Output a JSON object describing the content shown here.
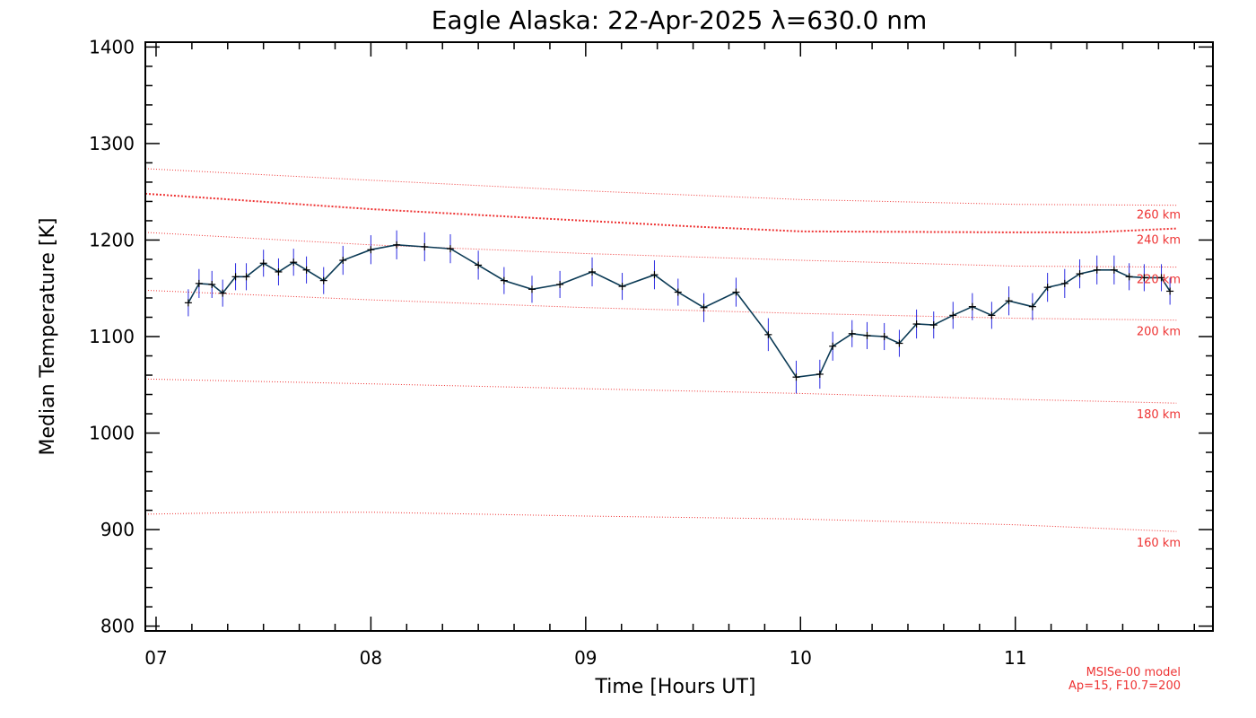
{
  "chart_data": {
    "type": "line",
    "title": "Eagle Alaska: 22-Apr-2025 λ=630.0 nm",
    "xlabel": "Time [Hours UT]",
    "ylabel": "Median Temperature [K]",
    "xlim": [
      6.95,
      11.92
    ],
    "ylim": [
      795,
      1405
    ],
    "x_ticks": [
      7,
      8,
      9,
      10,
      11
    ],
    "x_tick_labels": [
      "07",
      "08",
      "09",
      "10",
      "11"
    ],
    "y_ticks": [
      800,
      900,
      1000,
      1100,
      1200,
      1300,
      1400
    ],
    "y_tick_labels": [
      "800",
      "900",
      "1000",
      "1100",
      "1200",
      "1300",
      "1400"
    ],
    "series": [
      {
        "name": "Median Temperature",
        "color": "#0b3a55",
        "error_color": "#2a2ae0",
        "x": [
          7.15,
          7.2,
          7.26,
          7.31,
          7.37,
          7.42,
          7.5,
          7.57,
          7.64,
          7.7,
          7.78,
          7.87,
          8.0,
          8.12,
          8.25,
          8.37,
          8.5,
          8.62,
          8.75,
          8.88,
          9.03,
          9.17,
          9.32,
          9.43,
          9.55,
          9.7,
          9.85,
          9.98,
          10.09,
          10.15,
          10.24,
          10.31,
          10.39,
          10.46,
          10.54,
          10.62,
          10.71,
          10.8,
          10.89,
          10.97,
          11.08,
          11.15,
          11.23,
          11.3,
          11.38,
          11.46,
          11.53,
          11.6,
          11.68,
          11.72
        ],
        "y": [
          1135,
          1155,
          1154,
          1145,
          1162,
          1162,
          1176,
          1167,
          1177,
          1169,
          1158,
          1179,
          1190,
          1195,
          1193,
          1191,
          1174,
          1158,
          1149,
          1154,
          1167,
          1152,
          1164,
          1146,
          1130,
          1146,
          1102,
          1058,
          1061,
          1090,
          1103,
          1101,
          1100,
          1093,
          1113,
          1112,
          1122,
          1131,
          1122,
          1137,
          1131,
          1151,
          1155,
          1165,
          1169,
          1169,
          1162,
          1161,
          1161,
          1147
        ],
        "err": [
          14,
          15,
          14,
          14,
          14,
          14,
          14,
          14,
          14,
          14,
          14,
          15,
          15,
          15,
          15,
          15,
          15,
          14,
          14,
          14,
          15,
          14,
          15,
          14,
          15,
          15,
          17,
          17,
          15,
          15,
          14,
          14,
          14,
          14,
          15,
          14,
          14,
          14,
          14,
          15,
          14,
          15,
          15,
          15,
          15,
          15,
          14,
          14,
          14,
          14
        ]
      }
    ],
    "model_curves": [
      {
        "label": "260 km",
        "x": [
          6.95,
          8.0,
          9.0,
          10.0,
          11.0,
          11.75
        ],
        "y": [
          1274,
          1262,
          1251,
          1242,
          1237,
          1236
        ]
      },
      {
        "label": "240 km",
        "x": [
          6.95,
          8.0,
          9.0,
          9.5,
          10.0,
          11.0,
          11.35,
          11.75
        ],
        "y": [
          1248,
          1232,
          1220,
          1214,
          1209,
          1208,
          1208,
          1212
        ],
        "bold": true
      },
      {
        "label": "220 km",
        "x": [
          6.95,
          8.0,
          9.0,
          10.0,
          11.0,
          11.75
        ],
        "y": [
          1208,
          1195,
          1186,
          1179,
          1173,
          1172
        ]
      },
      {
        "label": "200 km",
        "x": [
          6.95,
          8.0,
          9.0,
          10.0,
          11.0,
          11.75
        ],
        "y": [
          1148,
          1138,
          1130,
          1124,
          1119,
          1117
        ]
      },
      {
        "label": "180 km",
        "x": [
          6.95,
          8.0,
          9.0,
          10.0,
          11.0,
          11.75
        ],
        "y": [
          1056,
          1051,
          1046,
          1041,
          1035,
          1031
        ]
      },
      {
        "label": "160 km",
        "x": [
          6.95,
          7.5,
          8.0,
          9.0,
          10.0,
          11.0,
          11.75
        ],
        "y": [
          916,
          918,
          918,
          914,
          911,
          905,
          898
        ]
      }
    ],
    "model_line_color": "#ee3333",
    "model_note": [
      "MSISe-00 model",
      "Ap=15, F10.7=200"
    ]
  }
}
